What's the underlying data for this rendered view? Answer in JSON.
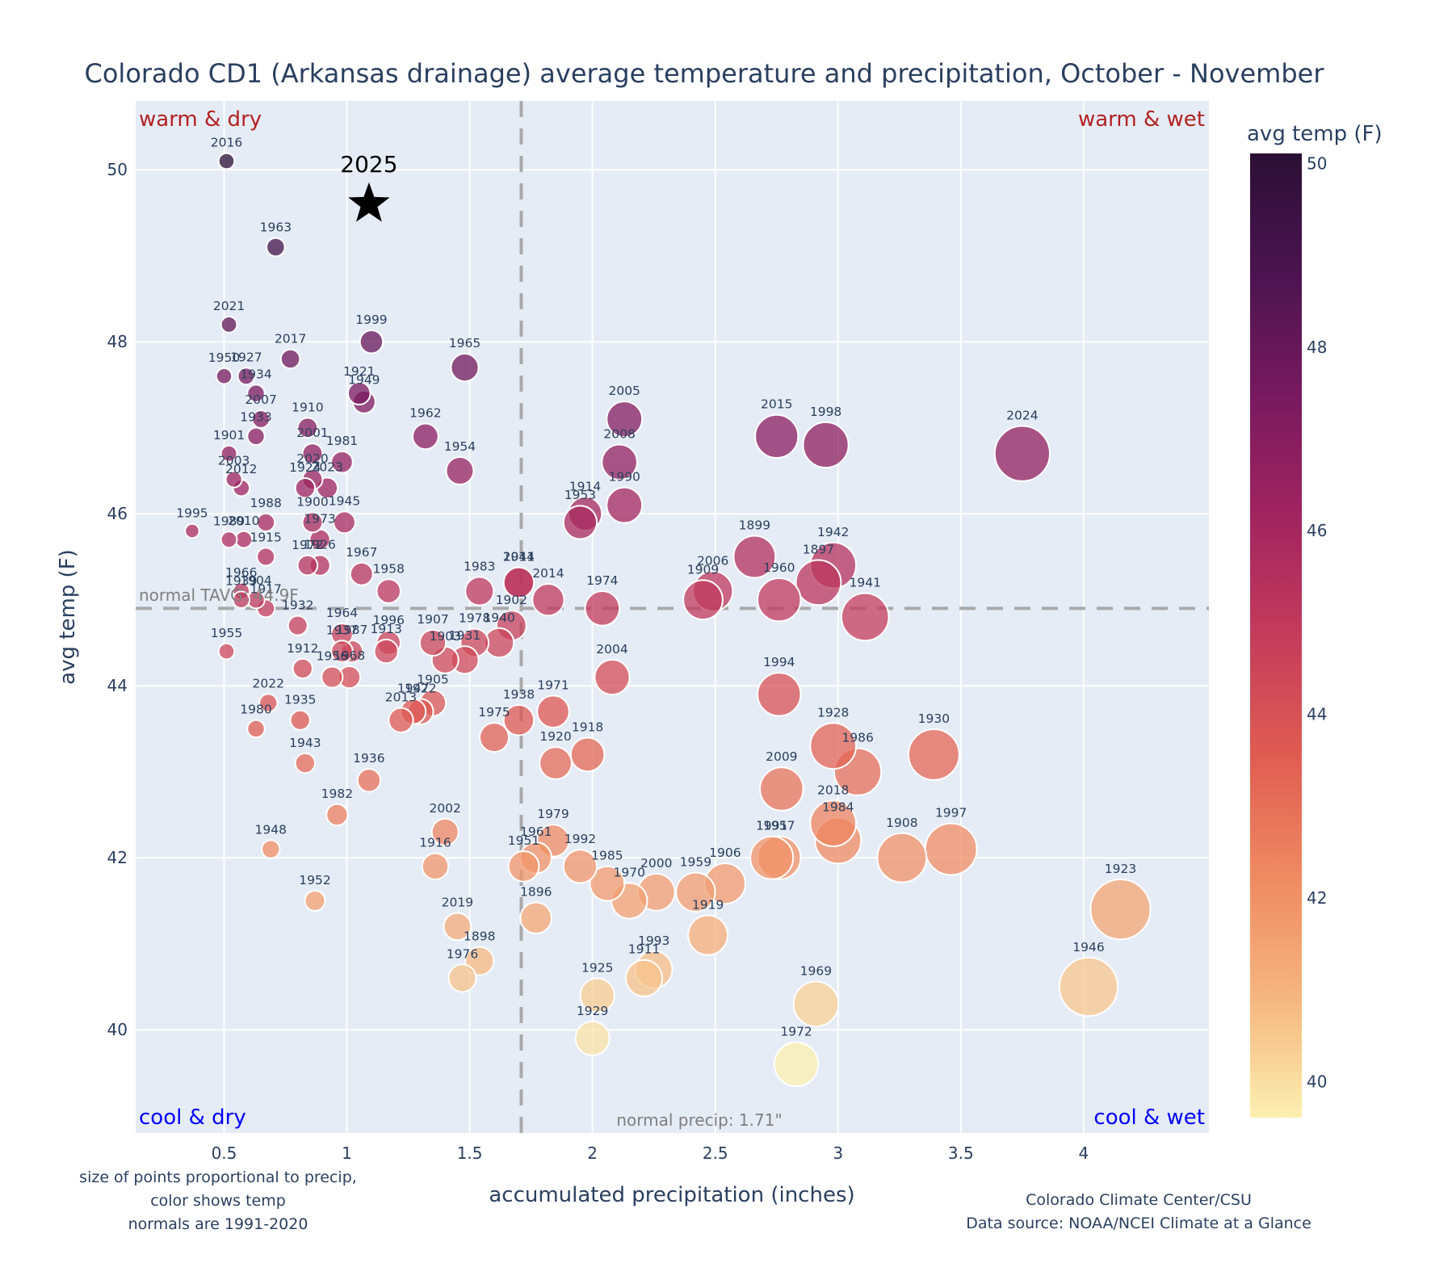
{
  "chart_data": {
    "type": "scatter",
    "title": "Colorado CD1 (Arkansas drainage) average temperature and precipitation, October - November",
    "xlabel": "accumulated precipitation (inches)",
    "ylabel": "avg temp (F)",
    "xlim": [
      0.14,
      4.51
    ],
    "ylim": [
      38.8,
      50.8
    ],
    "xticks": [
      0.5,
      1,
      1.5,
      2,
      2.5,
      3,
      3.5,
      4
    ],
    "xtick_labels": [
      "0.5",
      "1",
      "1.5",
      "2",
      "2.5",
      "3",
      "3.5",
      "4"
    ],
    "yticks": [
      40,
      42,
      44,
      46,
      48,
      50
    ],
    "ytick_labels": [
      "40",
      "42",
      "44",
      "46",
      "48",
      "50"
    ],
    "grid": true,
    "colorbar": {
      "title": "avg temp (F)",
      "range": [
        39.6,
        50.1
      ],
      "ticks": [
        "40",
        "42",
        "44",
        "46",
        "48",
        "50"
      ],
      "tick_values": [
        40,
        42,
        44,
        46,
        48,
        50
      ],
      "colorscale": [
        "#fcefb0",
        "#f6b57f",
        "#ef8a62",
        "#e05c52",
        "#c43c5c",
        "#a1245f",
        "#78195f",
        "#4b1450",
        "#2b0f35"
      ]
    },
    "size_encoding": "precip",
    "reference_lines": {
      "normal_tavg": 44.9,
      "normal_tavg_label": "normal TAVG: 44.9F",
      "normal_precip": 1.71,
      "normal_precip_label": "normal precip: 1.71\""
    },
    "quadrant_labels": {
      "top_left": "warm & dry",
      "top_right": "warm & wet",
      "bottom_left": "cool & dry",
      "bottom_right": "cool & wet"
    },
    "highlight": {
      "label": "2025",
      "x": 1.09,
      "y": 49.6,
      "marker": "star"
    },
    "points": [
      {
        "year": "2016",
        "x": 0.51,
        "y": 50.1
      },
      {
        "year": "1963",
        "x": 0.71,
        "y": 49.1
      },
      {
        "year": "2021",
        "x": 0.52,
        "y": 48.2
      },
      {
        "year": "2017",
        "x": 0.77,
        "y": 47.8
      },
      {
        "year": "1999",
        "x": 1.1,
        "y": 48.0
      },
      {
        "year": "1965",
        "x": 1.48,
        "y": 47.7
      },
      {
        "year": "1950",
        "x": 0.5,
        "y": 47.6
      },
      {
        "year": "1927",
        "x": 0.59,
        "y": 47.6
      },
      {
        "year": "1934",
        "x": 0.63,
        "y": 47.4
      },
      {
        "year": "1921",
        "x": 1.05,
        "y": 47.4
      },
      {
        "year": "1949",
        "x": 1.07,
        "y": 47.3
      },
      {
        "year": "2007",
        "x": 0.65,
        "y": 47.1
      },
      {
        "year": "1910",
        "x": 0.84,
        "y": 47.0
      },
      {
        "year": "1933",
        "x": 0.63,
        "y": 46.9
      },
      {
        "year": "1962",
        "x": 1.32,
        "y": 46.9
      },
      {
        "year": "2005",
        "x": 2.13,
        "y": 47.1
      },
      {
        "year": "2015",
        "x": 2.75,
        "y": 46.9
      },
      {
        "year": "1998",
        "x": 2.95,
        "y": 46.8
      },
      {
        "year": "2024",
        "x": 3.75,
        "y": 46.7
      },
      {
        "year": "1901",
        "x": 0.52,
        "y": 46.7
      },
      {
        "year": "2001",
        "x": 0.86,
        "y": 46.7
      },
      {
        "year": "2008",
        "x": 2.11,
        "y": 46.6
      },
      {
        "year": "1981",
        "x": 0.98,
        "y": 46.6
      },
      {
        "year": "2003",
        "x": 0.54,
        "y": 46.4
      },
      {
        "year": "2020",
        "x": 0.86,
        "y": 46.4
      },
      {
        "year": "1954",
        "x": 1.46,
        "y": 46.5
      },
      {
        "year": "2012",
        "x": 0.57,
        "y": 46.3
      },
      {
        "year": "1924",
        "x": 0.83,
        "y": 46.3
      },
      {
        "year": "2023",
        "x": 0.92,
        "y": 46.3
      },
      {
        "year": "1990",
        "x": 2.13,
        "y": 46.1
      },
      {
        "year": "1914",
        "x": 1.97,
        "y": 46.0
      },
      {
        "year": "1953",
        "x": 1.95,
        "y": 45.9
      },
      {
        "year": "1995",
        "x": 0.37,
        "y": 45.8
      },
      {
        "year": "1988",
        "x": 0.67,
        "y": 45.9
      },
      {
        "year": "1900",
        "x": 0.86,
        "y": 45.9
      },
      {
        "year": "1945",
        "x": 0.99,
        "y": 45.9
      },
      {
        "year": "1989",
        "x": 0.52,
        "y": 45.7
      },
      {
        "year": "2010",
        "x": 0.58,
        "y": 45.7
      },
      {
        "year": "1973",
        "x": 0.89,
        "y": 45.7
      },
      {
        "year": "1915",
        "x": 0.67,
        "y": 45.5
      },
      {
        "year": "1972",
        "x": 0.84,
        "y": 45.4
      },
      {
        "year": "1926",
        "x": 0.89,
        "y": 45.4
      },
      {
        "year": "1899",
        "x": 2.66,
        "y": 45.5
      },
      {
        "year": "1942",
        "x": 2.98,
        "y": 45.4
      },
      {
        "year": "1967",
        "x": 1.06,
        "y": 45.3
      },
      {
        "year": "1958",
        "x": 1.17,
        "y": 45.1
      },
      {
        "year": "1983",
        "x": 1.54,
        "y": 45.1
      },
      {
        "year": "2011",
        "x": 1.7,
        "y": 45.2
      },
      {
        "year": "1944",
        "x": 1.7,
        "y": 45.2
      },
      {
        "year": "1897",
        "x": 2.92,
        "y": 45.2
      },
      {
        "year": "2006",
        "x": 2.49,
        "y": 45.1
      },
      {
        "year": "1966",
        "x": 0.57,
        "y": 45.1
      },
      {
        "year": "1939",
        "x": 0.57,
        "y": 45.0
      },
      {
        "year": "1904",
        "x": 0.63,
        "y": 45.0
      },
      {
        "year": "1917",
        "x": 0.67,
        "y": 44.9
      },
      {
        "year": "2014",
        "x": 1.82,
        "y": 45.0
      },
      {
        "year": "1909",
        "x": 2.45,
        "y": 45.0
      },
      {
        "year": "1960",
        "x": 2.76,
        "y": 45.0
      },
      {
        "year": "1974",
        "x": 2.04,
        "y": 44.9
      },
      {
        "year": "1941",
        "x": 3.11,
        "y": 44.8
      },
      {
        "year": "1932",
        "x": 0.8,
        "y": 44.7
      },
      {
        "year": "1902",
        "x": 1.67,
        "y": 44.7
      },
      {
        "year": "1964",
        "x": 0.98,
        "y": 44.6
      },
      {
        "year": "1996",
        "x": 1.17,
        "y": 44.5
      },
      {
        "year": "1907",
        "x": 1.35,
        "y": 44.5
      },
      {
        "year": "1978",
        "x": 1.52,
        "y": 44.5
      },
      {
        "year": "1940",
        "x": 1.62,
        "y": 44.5
      },
      {
        "year": "1955",
        "x": 0.51,
        "y": 44.4
      },
      {
        "year": "1937",
        "x": 0.98,
        "y": 44.4
      },
      {
        "year": "1987",
        "x": 1.02,
        "y": 44.4
      },
      {
        "year": "1913",
        "x": 1.16,
        "y": 44.4
      },
      {
        "year": "1903",
        "x": 1.4,
        "y": 44.3
      },
      {
        "year": "1931",
        "x": 1.48,
        "y": 44.3
      },
      {
        "year": "1912",
        "x": 0.82,
        "y": 44.2
      },
      {
        "year": "1956",
        "x": 0.94,
        "y": 44.1
      },
      {
        "year": "1968",
        "x": 1.01,
        "y": 44.1
      },
      {
        "year": "2004",
        "x": 2.08,
        "y": 44.1
      },
      {
        "year": "1994",
        "x": 2.76,
        "y": 43.9
      },
      {
        "year": "2022",
        "x": 0.68,
        "y": 43.8
      },
      {
        "year": "1905",
        "x": 1.35,
        "y": 43.8
      },
      {
        "year": "1947",
        "x": 1.27,
        "y": 43.7
      },
      {
        "year": "1922",
        "x": 1.3,
        "y": 43.7
      },
      {
        "year": "1971",
        "x": 1.84,
        "y": 43.7
      },
      {
        "year": "2013",
        "x": 1.22,
        "y": 43.6
      },
      {
        "year": "1935",
        "x": 0.81,
        "y": 43.6
      },
      {
        "year": "1938",
        "x": 1.7,
        "y": 43.6
      },
      {
        "year": "1980",
        "x": 0.63,
        "y": 43.5
      },
      {
        "year": "1975",
        "x": 1.6,
        "y": 43.4
      },
      {
        "year": "1928",
        "x": 2.98,
        "y": 43.3
      },
      {
        "year": "1930",
        "x": 3.39,
        "y": 43.2
      },
      {
        "year": "1918",
        "x": 1.98,
        "y": 43.2
      },
      {
        "year": "1943",
        "x": 0.83,
        "y": 43.1
      },
      {
        "year": "1920",
        "x": 1.85,
        "y": 43.1
      },
      {
        "year": "1986",
        "x": 3.08,
        "y": 43.0
      },
      {
        "year": "1936",
        "x": 1.09,
        "y": 42.9
      },
      {
        "year": "2009",
        "x": 2.77,
        "y": 42.8
      },
      {
        "year": "1982",
        "x": 0.96,
        "y": 42.5
      },
      {
        "year": "2018",
        "x": 2.98,
        "y": 42.4
      },
      {
        "year": "2002",
        "x": 1.4,
        "y": 42.3
      },
      {
        "year": "1979",
        "x": 1.84,
        "y": 42.2
      },
      {
        "year": "1984",
        "x": 3.0,
        "y": 42.2
      },
      {
        "year": "1948",
        "x": 0.69,
        "y": 42.1
      },
      {
        "year": "1997",
        "x": 3.46,
        "y": 42.1
      },
      {
        "year": "1961",
        "x": 1.77,
        "y": 42.0
      },
      {
        "year": "1991",
        "x": 2.73,
        "y": 42.0
      },
      {
        "year": "1957",
        "x": 2.76,
        "y": 42.0
      },
      {
        "year": "1908",
        "x": 3.26,
        "y": 42.0
      },
      {
        "year": "1916",
        "x": 1.36,
        "y": 41.9
      },
      {
        "year": "1951",
        "x": 1.72,
        "y": 41.9
      },
      {
        "year": "1992",
        "x": 1.95,
        "y": 41.9
      },
      {
        "year": "1985",
        "x": 2.06,
        "y": 41.7
      },
      {
        "year": "1906",
        "x": 2.54,
        "y": 41.7
      },
      {
        "year": "2000",
        "x": 2.26,
        "y": 41.6
      },
      {
        "year": "1959",
        "x": 2.42,
        "y": 41.6
      },
      {
        "year": "1970",
        "x": 2.15,
        "y": 41.5
      },
      {
        "year": "1952",
        "x": 0.87,
        "y": 41.5
      },
      {
        "year": "1923",
        "x": 4.15,
        "y": 41.4
      },
      {
        "year": "1896",
        "x": 1.77,
        "y": 41.3
      },
      {
        "year": "2019",
        "x": 1.45,
        "y": 41.2
      },
      {
        "year": "1919",
        "x": 2.47,
        "y": 41.1
      },
      {
        "year": "1898",
        "x": 1.54,
        "y": 40.8
      },
      {
        "year": "1993",
        "x": 2.25,
        "y": 40.7
      },
      {
        "year": "1976",
        "x": 1.47,
        "y": 40.6
      },
      {
        "year": "1911",
        "x": 2.21,
        "y": 40.6
      },
      {
        "year": "1946",
        "x": 4.02,
        "y": 40.5
      },
      {
        "year": "1925",
        "x": 2.02,
        "y": 40.4
      },
      {
        "year": "1969",
        "x": 2.91,
        "y": 40.3
      },
      {
        "year": "1929",
        "x": 2.0,
        "y": 39.9
      },
      {
        "year": "1972b",
        "x": 2.83,
        "y": 39.6
      }
    ]
  },
  "footnotes": {
    "left": [
      "size of points proportional to precip,",
      "color shows temp",
      "normals are 1991-2020"
    ],
    "right": [
      "Colorado Climate Center/CSU",
      "Data source: NOAA/NCEI Climate at a Glance"
    ]
  },
  "colors": {
    "plot_bg": "#e5ecf6",
    "grid": "#ffffff",
    "warm_label": "#b22222",
    "cool_label": "#0000ff",
    "ref_line": "#a9a9a9",
    "text": "#2a3f5f"
  }
}
